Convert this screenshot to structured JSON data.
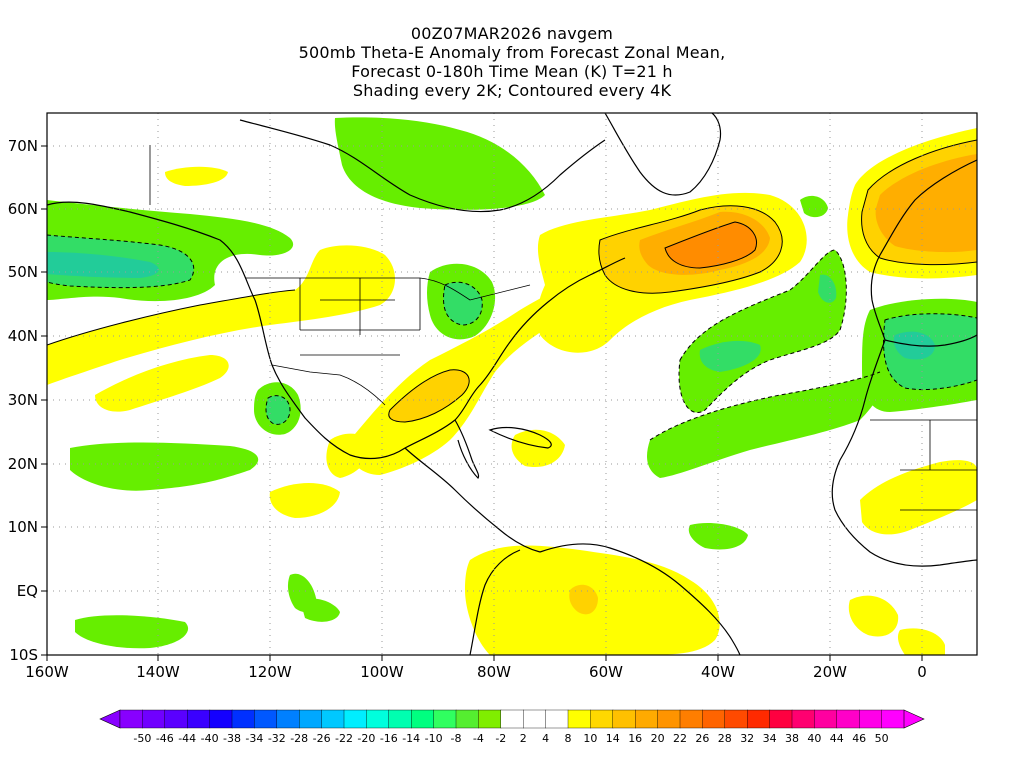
{
  "title": {
    "line1": "00Z07MAR2026 navgem",
    "line2": "500mb Theta-E Anomaly from Forecast Zonal Mean,",
    "line3": "Forecast 0-180h Time Mean (K) T=21 h",
    "line4": "Shading every 2K; Contoured every 4K"
  },
  "map": {
    "lat_labels": [
      "70N",
      "60N",
      "50N",
      "40N",
      "30N",
      "20N",
      "10N",
      "EQ",
      "10S"
    ],
    "lon_labels": [
      "160W",
      "140W",
      "120W",
      "100W",
      "80W",
      "60W",
      "40W",
      "20W",
      "0"
    ],
    "colors": {
      "pos_2_4": "#ffff00",
      "pos_4_8": "#ffd200",
      "pos_8_12": "#ffae00",
      "pos_12_16": "#ff8c00",
      "neg_2_4": "#66ee00",
      "neg_4_8": "#33dd66",
      "neg_8_12": "#22cc99",
      "land": "#000000",
      "grid": "#9a9a9a"
    }
  },
  "colorbar": {
    "labels": [
      "-50",
      "-46",
      "-44",
      "-40",
      "-38",
      "-34",
      "-32",
      "-28",
      "-26",
      "-22",
      "-20",
      "-16",
      "-14",
      "-10",
      "-8",
      "-4",
      "-2",
      "2",
      "4",
      "8",
      "10",
      "14",
      "16",
      "20",
      "22",
      "26",
      "28",
      "32",
      "34",
      "38",
      "40",
      "44",
      "46",
      "50"
    ],
    "colors": [
      "#8800ff",
      "#7000ff",
      "#5a00ff",
      "#3a00ff",
      "#1400ff",
      "#0030ff",
      "#0058ff",
      "#0080ff",
      "#00a8ff",
      "#00c8ff",
      "#00eeff",
      "#00ffdd",
      "#00ffb0",
      "#00ff80",
      "#30ff60",
      "#55ee30",
      "#80ee00",
      "#ffffff",
      "#ffffff",
      "#ffffff",
      "#ffff00",
      "#ffd800",
      "#ffc000",
      "#ffaa00",
      "#ff9400",
      "#ff7e00",
      "#ff6400",
      "#ff4a00",
      "#ff2a00",
      "#ff0040",
      "#ff0070",
      "#ff00a0",
      "#ff00c8",
      "#ff00e8",
      "#ff00ff"
    ]
  }
}
